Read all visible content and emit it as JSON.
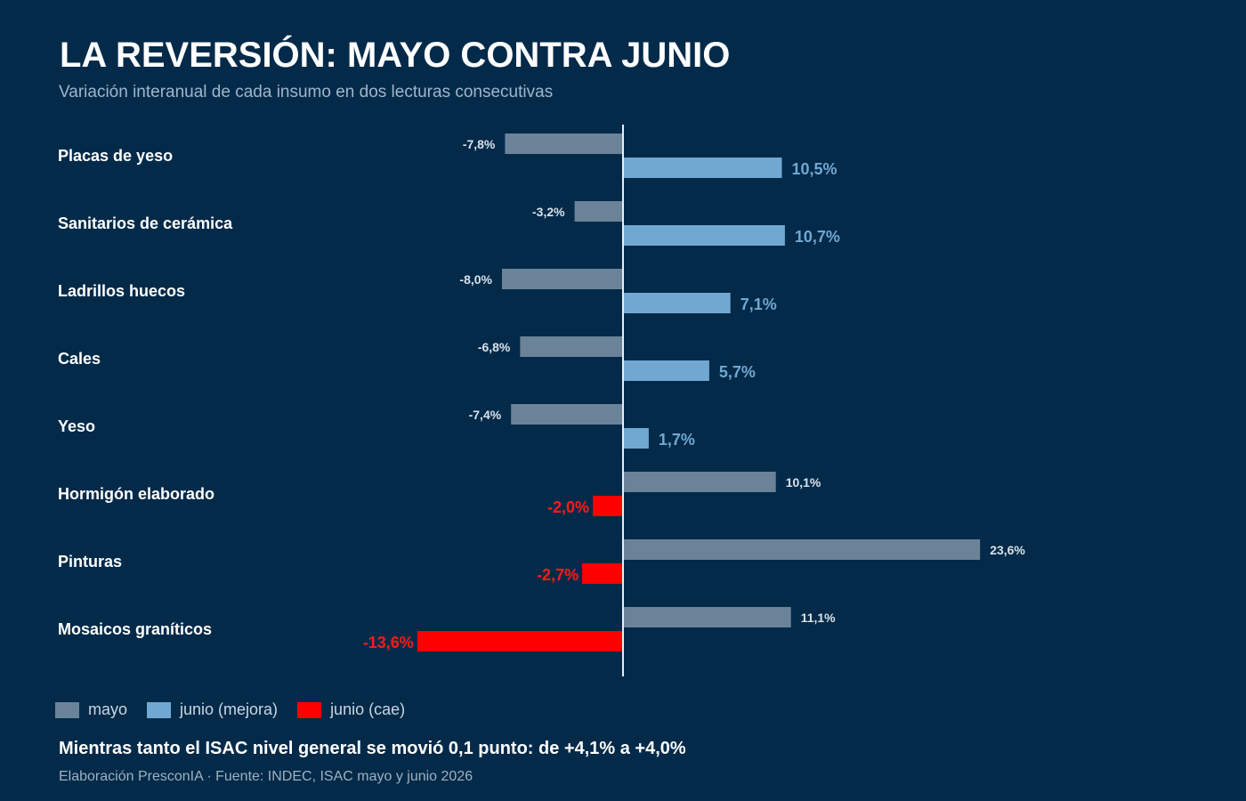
{
  "header": {
    "title": "LA REVERSIÓN: MAYO CONTRA JUNIO",
    "subtitle": "Variación interanual de cada insumo en dos lecturas consecutivas"
  },
  "chart_data": {
    "type": "bar",
    "orientation": "horizontal",
    "categories": [
      "Placas de yeso",
      "Sanitarios de cerámica",
      "Ladrillos huecos",
      "Cales",
      "Yeso",
      "Hormigón elaborado",
      "Pinturas",
      "Mosaicos graníticos"
    ],
    "series": [
      {
        "name": "mayo",
        "values": [
          -7.8,
          -3.2,
          -8.0,
          -6.8,
          -7.4,
          10.1,
          23.6,
          11.1
        ],
        "labels": [
          "-7,8%",
          "-3,2%",
          "-8,0%",
          "-6,8%",
          "-7,4%",
          "10,1%",
          "23,6%",
          "11,1%"
        ]
      },
      {
        "name": "junio",
        "values": [
          10.5,
          10.7,
          7.1,
          5.7,
          1.7,
          -2.0,
          -2.7,
          -13.6
        ],
        "labels": [
          "10,5%",
          "10,7%",
          "7,1%",
          "5,7%",
          "1,7%",
          "-2,0%",
          "-2,7%",
          "-13,6%"
        ]
      }
    ],
    "colors": {
      "mayo": "#6b8399",
      "junio_mejora": "#70a8d2",
      "junio_cae": "#ff0000",
      "zero_line": "#e8eef3",
      "category_label": "#ffffff",
      "mayo_label": "#d8e1ea",
      "junio_mejora_label": "#70a8d2",
      "junio_cae_label": "#ff1a1a"
    },
    "legend": {
      "placement": "bottom-left",
      "items": [
        {
          "label": "mayo",
          "color": "#6b8399"
        },
        {
          "label": "junio (mejora)",
          "color": "#70a8d2"
        },
        {
          "label": "junio (cae)",
          "color": "#ff0000"
        }
      ]
    },
    "zero_line": true,
    "grid": false
  },
  "footer": {
    "note": "Mientras tanto el ISAC nivel general se movió 0,1 punto: de +4,1% a +4,0%",
    "source": "Elaboración PresconIA · Fuente: INDEC, ISAC mayo y junio 2026"
  }
}
